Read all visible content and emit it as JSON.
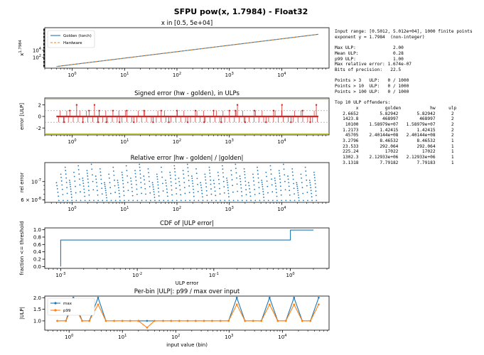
{
  "figure_title": "SFPU pow(x, 1.7984) - Float32",
  "colors": {
    "golden": "#1f77b4",
    "hardware": "#ff7f0e",
    "error": "#d62728",
    "bound": "#bcbd22"
  },
  "stats_text": "Input range: [0.5012, 5.012e+04], 1000 finite points\nexponent y = 1.7984  (non-integer)\n\nMax ULP:              2.00\nMean ULP:             0.28\np99 ULP:              1.00\nMax relative error: 1.674e-07\nBits of precision:   22.5\n\nPoints > 3   ULP:   0 / 1000\nPoints > 10  ULP:   0 / 1000\nPoints > 100 ULP:   0 / 1000\n\nTop 10 ULP offenders:\n        x          golden           hw     ulp\n   2.6652        5.82942       5.82942      2\n   1423.8         468997        468997      2\n    10100    1.58979e+07   1.58979e+07      2\n   1.2173        1.42415       1.42415      2\n    45705    2.40144e+08   2.40144e+08      2\n   3.2796        8.46532       8.46532      1\n   23.533        292.064       292.064      1\n   225.24          17022         17022      1\n   1302.3    2.12933e+06   2.12933e+06      1\n   3.1318        7.79182       7.79183      1",
  "chart_data": [
    {
      "type": "line",
      "title": "x in [0.5, 5e+04]",
      "ylabel": "x^1.7984",
      "xscale": "log",
      "yscale": "log",
      "xlim": [
        0.3,
        80000
      ],
      "ylim": [
        0.1,
        20000000000
      ],
      "xticks": [
        1,
        10,
        100,
        1000,
        10000
      ],
      "xticklabels": [
        "10^0",
        "10^1",
        "10^2",
        "10^3",
        "10^4"
      ],
      "yticks": [
        100,
        10000
      ],
      "yticklabels": [
        "10^2",
        "10^4"
      ],
      "legend": "upper-left",
      "series": [
        {
          "name": "Golden (torch)",
          "x": [
            0.5012,
            50120
          ],
          "y": [
            0.289,
            280000000
          ],
          "style": "solid"
        },
        {
          "name": "Hardware",
          "x": [
            0.5012,
            50120
          ],
          "y": [
            0.289,
            280000000
          ],
          "style": "dashed"
        }
      ]
    },
    {
      "type": "line",
      "title": "Signed error (hw - golden), in ULPs",
      "ylabel": "error [ULP]",
      "xscale": "log",
      "xlim": [
        0.3,
        80000
      ],
      "ylim": [
        -3.2,
        3.2
      ],
      "xticks": [
        1,
        10,
        100,
        1000,
        10000
      ],
      "xticklabels": [
        "10^0",
        "10^1",
        "10^2",
        "10^3",
        "10^4"
      ],
      "yticks": [
        -2,
        0,
        2
      ],
      "yticklabels": [
        "-2",
        "0",
        "2"
      ],
      "hlines": [
        -3,
        -1,
        1,
        3
      ],
      "points": [
        [
          0.7,
          -1
        ],
        [
          0.9,
          1
        ],
        [
          1.2173,
          2
        ],
        [
          1.6,
          -1
        ],
        [
          2.1,
          1
        ],
        [
          2.6652,
          2
        ],
        [
          3.1318,
          -1
        ],
        [
          3.2796,
          1
        ],
        [
          4.5,
          -1
        ],
        [
          6,
          1
        ],
        [
          8,
          -1
        ],
        [
          11,
          1
        ],
        [
          15,
          -1
        ],
        [
          23.533,
          1
        ],
        [
          35,
          -1
        ],
        [
          50,
          1
        ],
        [
          70,
          -1
        ],
        [
          100,
          1
        ],
        [
          160,
          -1
        ],
        [
          225.24,
          1
        ],
        [
          330,
          -1
        ],
        [
          500,
          1
        ],
        [
          700,
          -1
        ],
        [
          1000,
          1
        ],
        [
          1302.3,
          1
        ],
        [
          1423.8,
          2
        ],
        [
          2000,
          -1
        ],
        [
          3000,
          1
        ],
        [
          5000,
          -1
        ],
        [
          7000,
          1
        ],
        [
          10100,
          2
        ],
        [
          15000,
          -1
        ],
        [
          25000,
          1
        ],
        [
          35000,
          -1
        ],
        [
          45705,
          2
        ]
      ]
    },
    {
      "type": "scatter",
      "title": "Relative error |hw - golden| / |golden|",
      "ylabel": "rel error",
      "xscale": "log",
      "yscale": "log",
      "xlim": [
        0.3,
        80000
      ],
      "ylim": [
        5.6e-08,
        1.7e-07
      ],
      "xticks": [
        1,
        10,
        100,
        1000,
        10000
      ],
      "xticklabels": [
        "10^0",
        "10^1",
        "10^2",
        "10^3",
        "10^4"
      ],
      "yticks": [
        6e-08,
        1e-07
      ],
      "yticklabels": [
        "6 × 10^-8",
        "10^-7"
      ],
      "clusters_per_decade": 12,
      "rel_high": 1.674e-07,
      "rel_low": 5.9e-08
    },
    {
      "type": "line",
      "title": "CDF of |ULP error|",
      "xlabel": "ULP error",
      "ylabel": "fraction <= threshold",
      "xscale": "log",
      "xlim": [
        0.00062,
        3.2
      ],
      "ylim": [
        -0.05,
        1.05
      ],
      "xticks": [
        0.001,
        0.01,
        0.1,
        1
      ],
      "xticklabels": [
        "10^-3",
        "10^-2",
        "10^-1",
        "10^0"
      ],
      "yticks": [
        0,
        0.2,
        0.4,
        0.6,
        0.8,
        1.0
      ],
      "yticklabels": [
        "0.0",
        "0.2",
        "0.4",
        "0.6",
        "0.8",
        "1.0"
      ],
      "steps": [
        [
          0.001,
          0
        ],
        [
          0.001,
          0.72
        ],
        [
          1,
          0.72
        ],
        [
          1,
          0.99
        ],
        [
          2,
          0.99
        ]
      ]
    },
    {
      "type": "line",
      "title": "Per-bin |ULP|: p99 / max over input",
      "xlabel": "input value (bin)",
      "ylabel": "|ULP|",
      "xscale": "log",
      "xlim": [
        0.35,
        75000
      ],
      "ylim": [
        0.6,
        2.07
      ],
      "xticks": [
        1,
        10,
        100,
        1000,
        10000
      ],
      "xticklabels": [
        "10^0",
        "10^1",
        "10^2",
        "10^3",
        "10^4"
      ],
      "yticks": [
        1.0,
        1.5,
        2.0
      ],
      "yticklabels": [
        "1.0",
        "1.5",
        "2.0"
      ],
      "legend": "upper-left",
      "x": [
        0.6,
        0.87,
        1.2,
        1.76,
        2.4,
        3.5,
        4.9,
        7,
        10,
        14,
        20,
        29,
        40,
        58,
        82,
        117,
        167,
        237,
        338,
        482,
        687,
        979,
        1395,
        1987,
        2830,
        4030,
        5740,
        8180,
        11600,
        16500,
        23600,
        33600,
        47900
      ],
      "series": [
        {
          "name": "max",
          "values": [
            1,
            1,
            2,
            1,
            1,
            2,
            1,
            1,
            1,
            1,
            1,
            1,
            1,
            1,
            1,
            1,
            1,
            1,
            1,
            1,
            1,
            1,
            2,
            1,
            1,
            1,
            2,
            1,
            1,
            2,
            1,
            1,
            2
          ]
        },
        {
          "name": "p99",
          "values": [
            1,
            1,
            1.71,
            1,
            1,
            1.71,
            1,
            1,
            1,
            1,
            1,
            0.71,
            1,
            1,
            1,
            1,
            1,
            1,
            1,
            1,
            1,
            1,
            1.71,
            1,
            1,
            1,
            1.71,
            1,
            1,
            1.71,
            1,
            1,
            1.71
          ]
        }
      ]
    }
  ]
}
